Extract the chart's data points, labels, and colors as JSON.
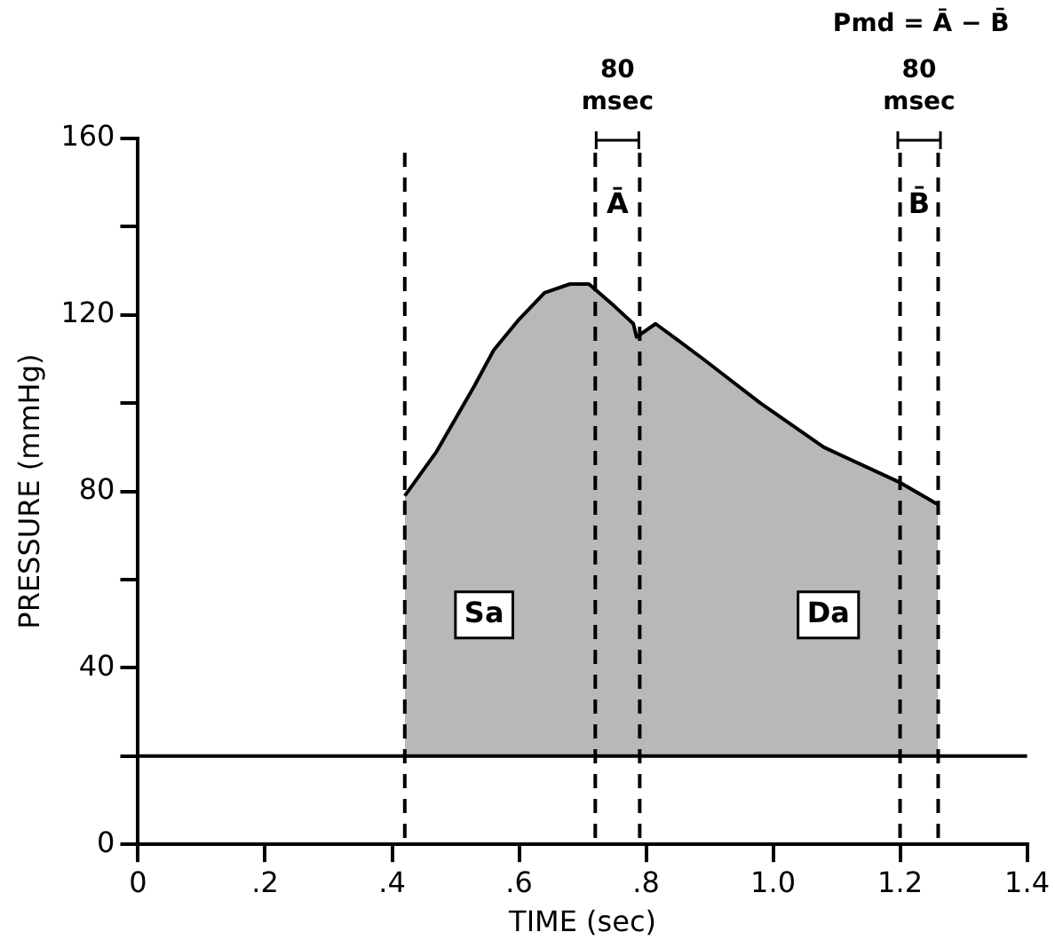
{
  "chart_data": {
    "type": "area",
    "xlabel": "TIME (sec)",
    "ylabel": "PRESSURE (mmHg)",
    "x": [
      0.42,
      0.47,
      0.53,
      0.56,
      0.6,
      0.64,
      0.68,
      0.71,
      0.75,
      0.78,
      0.785,
      0.815,
      0.89,
      0.98,
      1.08,
      1.2,
      1.26
    ],
    "series": [
      {
        "color": "#000000",
        "values": [
          79,
          89,
          104,
          112,
          119,
          125,
          127,
          127,
          122,
          118,
          115,
          118,
          110,
          100,
          90,
          82,
          77
        ]
      }
    ],
    "xlim": [
      0,
      1.4
    ],
    "xticks": [
      0,
      {
        "value": 0.2,
        "label": ".2"
      },
      {
        "value": 0.4,
        "label": ".4"
      },
      {
        "value": 0.6,
        "label": ".6"
      },
      {
        "value": 0.8,
        "label": ".8"
      },
      {
        "value": 1.0,
        "label": "1.0"
      },
      {
        "value": 1.2,
        "label": "1.2"
      },
      {
        "value": 1.4,
        "label": "1.4"
      }
    ],
    "ylim": [
      0,
      160
    ],
    "yticks": [
      0,
      {
        "value": 20,
        "label": null
      },
      40,
      {
        "value": 60,
        "label": null
      },
      80,
      {
        "value": 100,
        "label": null
      },
      120,
      {
        "value": 140,
        "label": null
      },
      160
    ],
    "ref_lines": [
      {
        "axis": "y",
        "value": 20,
        "line_style": "solid"
      },
      {
        "axis": "x",
        "value": 0.42,
        "line_style": "dashed"
      },
      {
        "axis": "x",
        "value": 0.72,
        "line_style": "dashed"
      },
      {
        "axis": "x",
        "value": 0.79,
        "line_style": "dashed"
      },
      {
        "axis": "x",
        "value": 1.2,
        "line_style": "dashed"
      },
      {
        "axis": "x",
        "value": 1.26,
        "line_style": "dashed"
      }
    ],
    "annotations": [
      "Pmd = Ā − B̄",
      "80 msec",
      "80 msec",
      "Ā",
      "B̄",
      {
        "text": "Sa",
        "x": 0.545,
        "y": 52
      },
      {
        "text": "Da",
        "x": 1.087,
        "y": 52
      }
    ],
    "grid": false,
    "legend": false,
    "marker": "none",
    "line_style": "solid"
  }
}
